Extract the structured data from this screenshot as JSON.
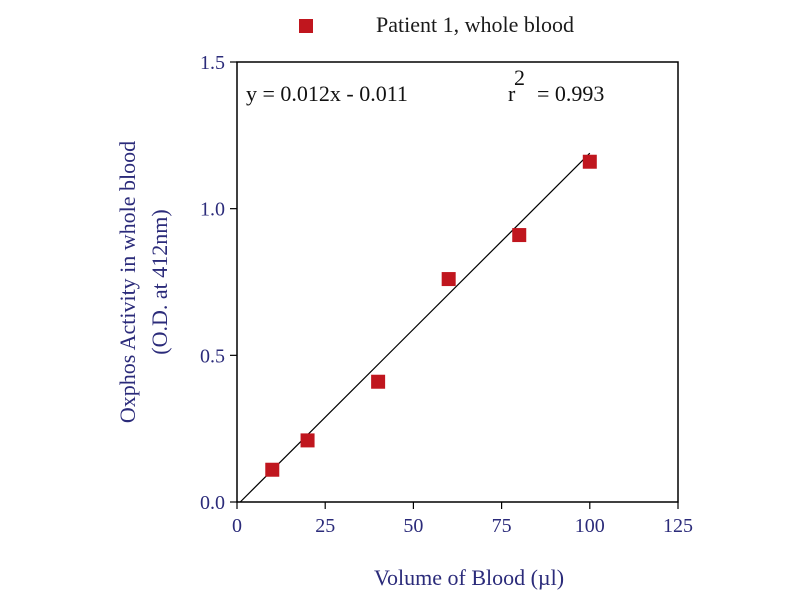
{
  "chart_data": {
    "type": "scatter",
    "xlabel": "Volume of Blood (µl)",
    "ylabel_line1": "Oxphos Activity in whole blood",
    "ylabel_line2": "(O.D. at 412nm)",
    "xlim": [
      0,
      125
    ],
    "ylim": [
      0,
      1.5
    ],
    "x_ticks": [
      0,
      25,
      50,
      75,
      100,
      125
    ],
    "y_ticks": [
      0.0,
      0.5,
      1.0,
      1.5
    ],
    "x_tick_labels": [
      "0",
      "25",
      "50",
      "75",
      "100",
      "125"
    ],
    "y_tick_labels": [
      "0.0",
      "0.5",
      "1.0",
      "1.5"
    ],
    "series": [
      {
        "name": "Patient 1, whole blood",
        "x": [
          10,
          20,
          40,
          60,
          80,
          100
        ],
        "y": [
          0.11,
          0.21,
          0.41,
          0.76,
          0.91,
          1.16
        ]
      }
    ],
    "fit_line": {
      "slope": 0.012,
      "intercept": -0.011,
      "x_range": [
        0,
        100
      ]
    },
    "annotation": {
      "equation": "y = 0.012x - 0.011",
      "r_symbol": "r",
      "r_exponent": "2",
      "r_value": "= 0.993"
    },
    "legend_position": "top, above plot",
    "grid": false,
    "colors": {
      "marker": "#c0161e",
      "axis_text": "#2b2b7a",
      "frame": "#000000"
    }
  }
}
